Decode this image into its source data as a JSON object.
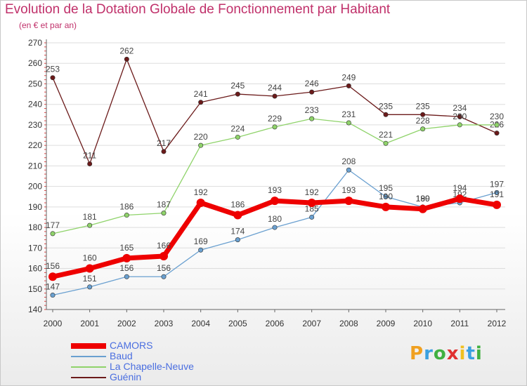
{
  "chart_data": {
    "type": "line",
    "title": "Evolution de la Dotation Globale de Fonctionnement par Habitant",
    "subtitle": "(en € et par an)",
    "categories": [
      "2000",
      "2001",
      "2002",
      "2003",
      "2004",
      "2005",
      "2006",
      "2007",
      "2008",
      "2009",
      "2010",
      "2011",
      "2012"
    ],
    "ylim": [
      140,
      270
    ],
    "yticks": [
      140,
      150,
      160,
      170,
      180,
      190,
      200,
      210,
      220,
      230,
      240,
      250,
      260,
      270
    ],
    "grid": "horizontal",
    "series": [
      {
        "name": "Guénin",
        "color": "#6b1a1a",
        "values": [
          253,
          211,
          262,
          217,
          241,
          245,
          244,
          246,
          249,
          235,
          235,
          234,
          226
        ]
      },
      {
        "name": "La Chapelle-Neuve",
        "color": "#8fd36a",
        "values": [
          177,
          181,
          186,
          187,
          220,
          224,
          229,
          233,
          231,
          221,
          228,
          230,
          230
        ]
      },
      {
        "name": "Baud",
        "color": "#6aa0d0",
        "values": [
          147,
          151,
          156,
          156,
          169,
          174,
          180,
          185,
          208,
          195,
          190,
          192,
          197
        ]
      },
      {
        "name": "CAMORS",
        "color": "#ee0000",
        "values": [
          156,
          160,
          165,
          166,
          192,
          186,
          193,
          192,
          193,
          190,
          189,
          194,
          191
        ]
      }
    ],
    "legend": [
      "CAMORS",
      "Baud",
      "La Chapelle-Neuve",
      "Guénin"
    ]
  },
  "logo": {
    "letters": [
      "P",
      "r",
      "o",
      "x",
      "i",
      "t",
      "i"
    ],
    "colors": [
      "#f0a020",
      "#3aa0e0",
      "#40b040",
      "#e03030",
      "#f0c020",
      "#3aa0e0",
      "#40b040"
    ]
  }
}
